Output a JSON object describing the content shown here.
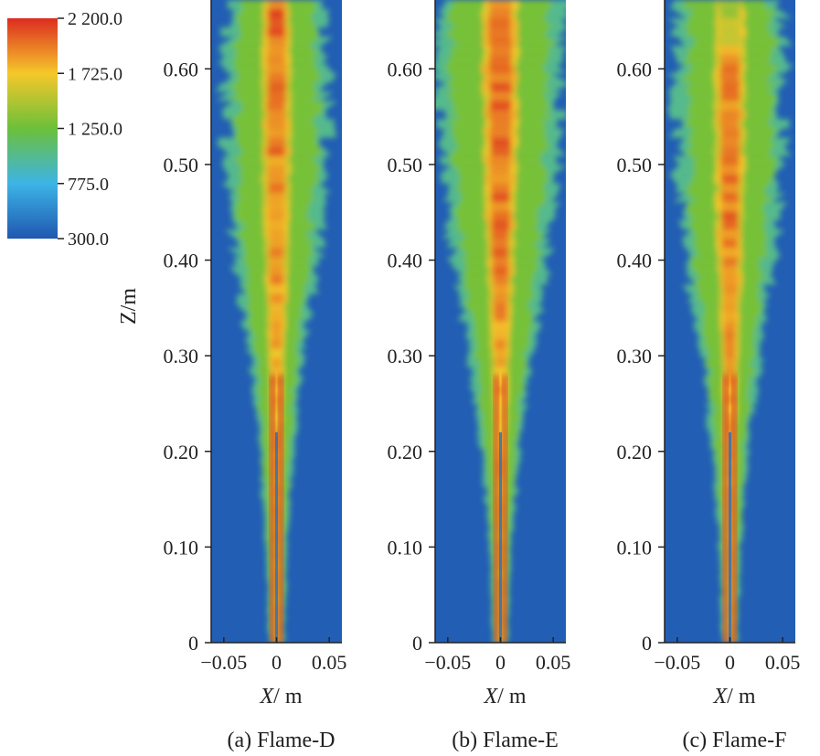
{
  "figure": {
    "colorbar": {
      "ticks": [
        "2 200.0",
        "1 725.0",
        "1 250.0",
        "775.0",
        "300.0"
      ],
      "colors": [
        "#dc2c20",
        "#f5c82a",
        "#6cc03a",
        "#3cb4e6",
        "#2057b0"
      ]
    },
    "ylabel": "Z/m",
    "ytick_labels": [
      "0",
      "0.10",
      "0.20",
      "0.30",
      "0.40",
      "0.50",
      "0.60"
    ],
    "xtick_labels": [
      "−0.05",
      "0",
      "0.05"
    ],
    "xlabel_italic": "X",
    "xlabel_unit": "/ m"
  },
  "chart_data": [
    {
      "type": "heatmap",
      "title": "(a) Flame-D",
      "xlabel": "X/ m",
      "ylabel": "Z/m",
      "xlim": [
        -0.05,
        0.05
      ],
      "ylim": [
        0,
        0.6
      ],
      "value_range": [
        300.0,
        2200.0
      ],
      "flame_profile": [
        {
          "z": 0.0,
          "core_halfwidth": 0.005,
          "core_level": 0.85,
          "outer_halfwidth": 0.007
        },
        {
          "z": 0.1,
          "core_halfwidth": 0.006,
          "core_level": 0.88,
          "outer_halfwidth": 0.01
        },
        {
          "z": 0.2,
          "core_halfwidth": 0.009,
          "core_level": 0.9,
          "outer_halfwidth": 0.016
        },
        {
          "z": 0.3,
          "core_halfwidth": 0.012,
          "core_level": 0.85,
          "outer_halfwidth": 0.025
        },
        {
          "z": 0.4,
          "core_halfwidth": 0.016,
          "core_level": 0.9,
          "outer_halfwidth": 0.04
        },
        {
          "z": 0.5,
          "core_halfwidth": 0.018,
          "core_level": 0.93,
          "outer_halfwidth": 0.048
        },
        {
          "z": 0.6,
          "core_halfwidth": 0.02,
          "core_level": 0.95,
          "outer_halfwidth": 0.05
        },
        {
          "z": 0.66,
          "core_halfwidth": 0.015,
          "core_level": 0.97,
          "outer_halfwidth": 0.045
        }
      ]
    },
    {
      "type": "heatmap",
      "title": "(b) Flame-E",
      "xlabel": "X/ m",
      "ylabel": "",
      "xlim": [
        -0.05,
        0.05
      ],
      "ylim": [
        0,
        0.6
      ],
      "value_range": [
        300.0,
        2200.0
      ],
      "flame_profile": [
        {
          "z": 0.0,
          "core_halfwidth": 0.005,
          "core_level": 0.85,
          "outer_halfwidth": 0.007
        },
        {
          "z": 0.1,
          "core_halfwidth": 0.006,
          "core_level": 0.88,
          "outer_halfwidth": 0.01
        },
        {
          "z": 0.2,
          "core_halfwidth": 0.008,
          "core_level": 0.85,
          "outer_halfwidth": 0.018
        },
        {
          "z": 0.3,
          "core_halfwidth": 0.012,
          "core_level": 0.88,
          "outer_halfwidth": 0.03
        },
        {
          "z": 0.4,
          "core_halfwidth": 0.015,
          "core_level": 0.93,
          "outer_halfwidth": 0.045
        },
        {
          "z": 0.5,
          "core_halfwidth": 0.01,
          "core_level": 0.95,
          "outer_halfwidth": 0.055
        },
        {
          "z": 0.6,
          "core_halfwidth": 0.015,
          "core_level": 0.97,
          "outer_halfwidth": 0.06
        },
        {
          "z": 0.66,
          "core_halfwidth": 0.012,
          "core_level": 0.9,
          "outer_halfwidth": 0.06
        }
      ]
    },
    {
      "type": "heatmap",
      "title": "(c) Flame-F",
      "xlabel": "X/ m",
      "ylabel": "",
      "xlim": [
        -0.05,
        0.05
      ],
      "ylim": [
        0,
        0.6
      ],
      "value_range": [
        300.0,
        2200.0
      ],
      "flame_profile": [
        {
          "z": 0.0,
          "core_halfwidth": 0.005,
          "core_level": 0.85,
          "outer_halfwidth": 0.007
        },
        {
          "z": 0.1,
          "core_halfwidth": 0.006,
          "core_level": 0.88,
          "outer_halfwidth": 0.01
        },
        {
          "z": 0.2,
          "core_halfwidth": 0.009,
          "core_level": 0.88,
          "outer_halfwidth": 0.017
        },
        {
          "z": 0.3,
          "core_halfwidth": 0.013,
          "core_level": 0.9,
          "outer_halfwidth": 0.028
        },
        {
          "z": 0.4,
          "core_halfwidth": 0.017,
          "core_level": 0.92,
          "outer_halfwidth": 0.042
        },
        {
          "z": 0.5,
          "core_halfwidth": 0.018,
          "core_level": 0.95,
          "outer_halfwidth": 0.05
        },
        {
          "z": 0.6,
          "core_halfwidth": 0.01,
          "core_level": 0.9,
          "outer_halfwidth": 0.052
        },
        {
          "z": 0.66,
          "core_halfwidth": 0.004,
          "core_level": 0.6,
          "outer_halfwidth": 0.05
        }
      ]
    }
  ]
}
